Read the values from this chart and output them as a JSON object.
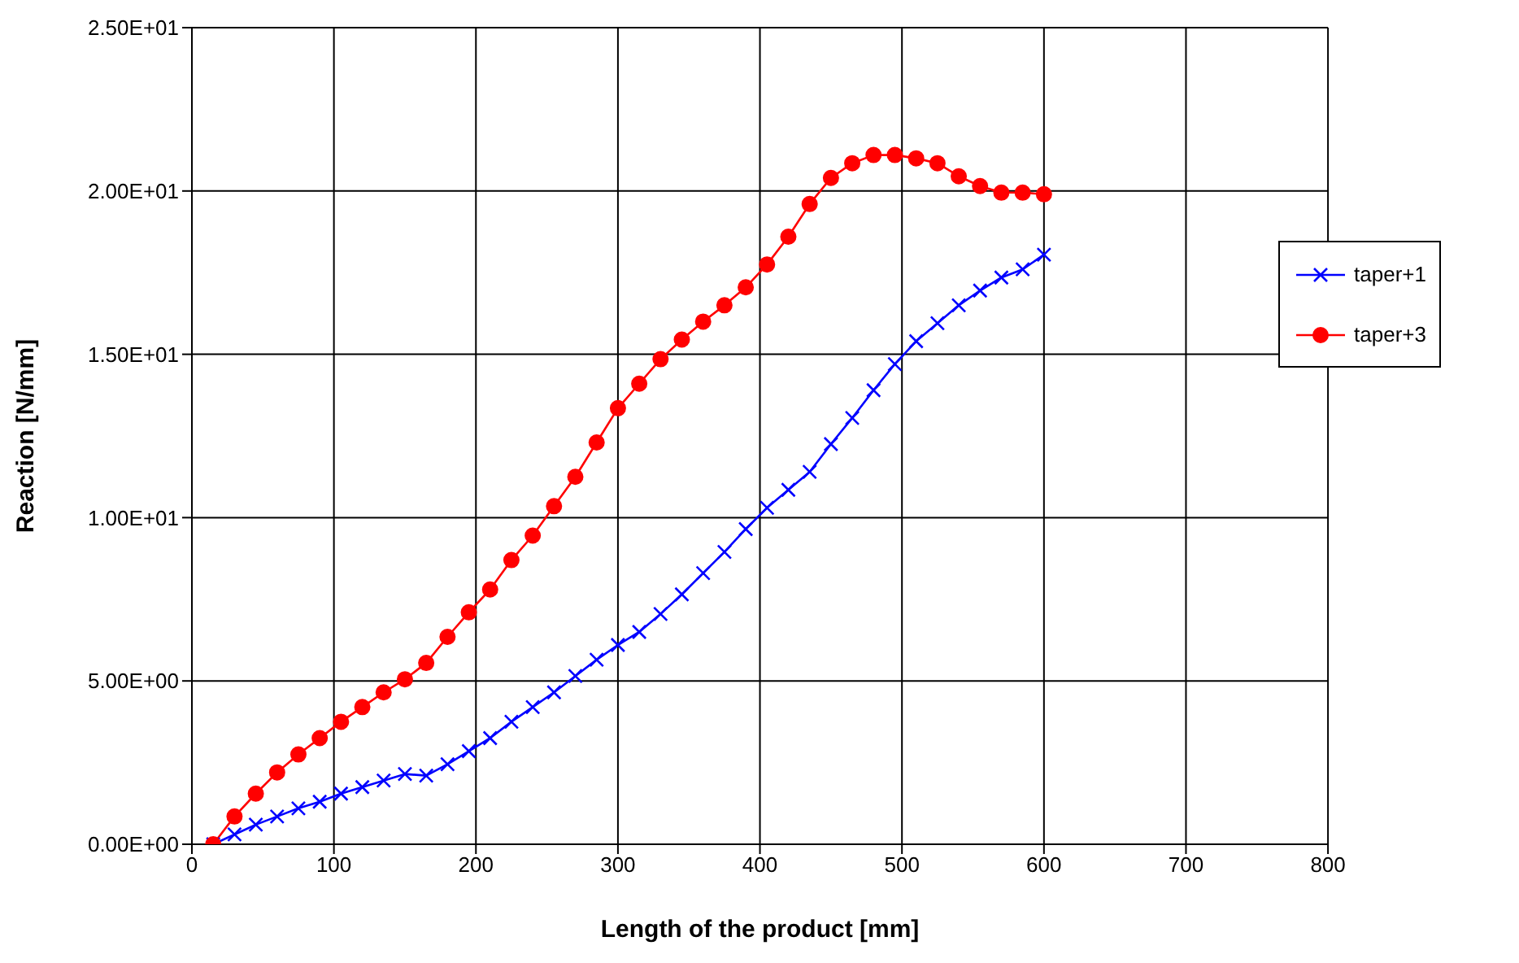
{
  "chart_data": {
    "type": "line",
    "xlabel": "Length of the product [mm]",
    "ylabel": "Reaction [N/mm]",
    "x": [
      15,
      30,
      45,
      60,
      75,
      90,
      105,
      120,
      135,
      150,
      165,
      180,
      195,
      210,
      225,
      240,
      255,
      270,
      285,
      300,
      315,
      330,
      345,
      360,
      375,
      390,
      405,
      420,
      435,
      450,
      465,
      480,
      495,
      510,
      525,
      540,
      555,
      570,
      585,
      600
    ],
    "series": [
      {
        "name": "taper+1",
        "color": "#0000ff",
        "marker": "cross",
        "values": [
          0,
          0.3,
          0.6,
          0.85,
          1.1,
          1.3,
          1.55,
          1.75,
          1.95,
          2.15,
          2.1,
          2.45,
          2.85,
          3.25,
          3.75,
          4.2,
          4.65,
          5.15,
          5.65,
          6.1,
          6.5,
          7.05,
          7.65,
          8.3,
          8.95,
          9.65,
          10.3,
          10.85,
          11.4,
          12.25,
          13.05,
          13.9,
          14.7,
          15.4,
          15.95,
          16.5,
          16.95,
          17.35,
          17.6,
          18.05
        ]
      },
      {
        "name": "taper+3",
        "color": "#ff0000",
        "marker": "circle",
        "values": [
          0,
          0.85,
          1.55,
          2.2,
          2.75,
          3.25,
          3.75,
          4.2,
          4.65,
          5.05,
          5.55,
          6.35,
          7.1,
          7.8,
          8.7,
          9.45,
          10.35,
          11.25,
          12.3,
          13.35,
          14.1,
          14.85,
          15.45,
          16.0,
          16.5,
          17.05,
          17.75,
          18.6,
          19.6,
          20.4,
          20.85,
          21.1,
          21.1,
          21.0,
          20.85,
          20.45,
          20.15,
          19.95,
          19.95,
          19.9
        ]
      }
    ],
    "xlim": [
      0,
      800
    ],
    "xticks": [
      0,
      100,
      200,
      300,
      400,
      500,
      600,
      700,
      800
    ],
    "ylim": [
      0,
      25
    ],
    "yticks": [
      {
        "value": 0,
        "label": "0.00E+00"
      },
      {
        "value": 5,
        "label": "5.00E+00"
      },
      {
        "value": 10,
        "label": "1.00E+01"
      },
      {
        "value": 15,
        "label": "1.50E+01"
      },
      {
        "value": 20,
        "label": "2.00E+01"
      },
      {
        "value": 25,
        "label": "2.50E+01"
      }
    ],
    "grid": true,
    "legend": "right",
    "line_style": "solid"
  }
}
